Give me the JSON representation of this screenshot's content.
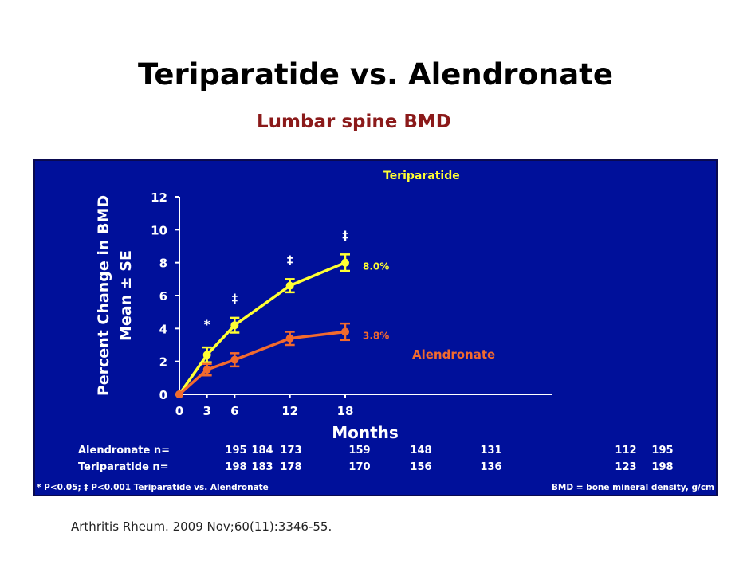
{
  "slide": {
    "title": "Teriparatide vs. Alendronate",
    "subtitle": "Lumbar spine BMD",
    "citation": "Arthritis Rheum. 2009 Nov;60(11):3346-55."
  },
  "chart_data": {
    "type": "line",
    "title": "",
    "ylabel_line1": "Percent Change in BMD",
    "ylabel_line2": "Mean ± SE",
    "xlabel": "Months",
    "x": [
      0,
      3,
      6,
      12,
      18
    ],
    "xticks": [
      "0",
      "3",
      "6",
      "12",
      "18"
    ],
    "yticks": [
      "0",
      "2",
      "4",
      "6",
      "8",
      "10",
      "12"
    ],
    "ylim": [
      0,
      12
    ],
    "xlim": [
      0,
      18
    ],
    "grid": false,
    "series": [
      {
        "name": "Teriparatide",
        "color": "#ffff33",
        "values": [
          0,
          2.4,
          4.2,
          6.6,
          8.0
        ],
        "errors": [
          0,
          0.45,
          0.45,
          0.4,
          0.5
        ],
        "end_label": "8.0%"
      },
      {
        "name": "Alendronate",
        "color": "#f26a2e",
        "values": [
          0,
          1.5,
          2.1,
          3.4,
          3.8
        ],
        "errors": [
          0,
          0.35,
          0.4,
          0.4,
          0.5
        ],
        "end_label": "3.8%"
      }
    ],
    "annotations": [
      {
        "x": 3,
        "text": "*",
        "y": 4.0
      },
      {
        "x": 6,
        "text": "‡",
        "y": 5.6
      },
      {
        "x": 12,
        "text": "‡",
        "y": 7.9
      },
      {
        "x": 18,
        "text": "‡",
        "y": 9.4
      }
    ],
    "n_table": {
      "rows": [
        {
          "label": "Alendronate n=",
          "values": [
            "195",
            "184",
            "173",
            "159",
            "148",
            "131",
            "112",
            "195"
          ]
        },
        {
          "label": "Teriparatide n=",
          "values": [
            "198",
            "183",
            "178",
            "170",
            "156",
            "136",
            "123",
            "198"
          ]
        }
      ]
    },
    "footnote_left": "* P<0.05; ‡ P<0.001 Teriparatide vs. Alendronate",
    "footnote_right": "BMD = bone mineral density, g/cm"
  }
}
